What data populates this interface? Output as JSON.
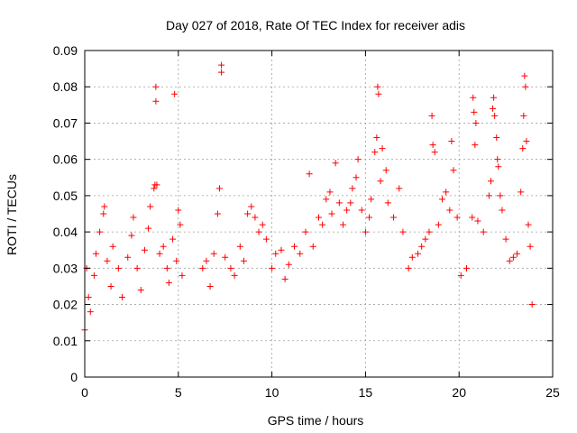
{
  "chart_data": {
    "type": "scatter",
    "title": "Day 027 of 2018, Rate Of TEC Index for receiver adis",
    "xlabel": "GPS time / hours",
    "ylabel": "ROTI / TECUs",
    "xlim": [
      0,
      25
    ],
    "ylim": [
      0,
      0.09
    ],
    "x_ticks": [
      0,
      5,
      10,
      15,
      20,
      25
    ],
    "y_ticks": [
      0,
      0.01,
      0.02,
      0.03,
      0.04,
      0.05,
      0.06,
      0.07,
      0.08,
      0.09
    ],
    "x_tick_labels": [
      "0",
      "5",
      "10",
      "15",
      "20",
      "25"
    ],
    "y_tick_labels": [
      "0",
      "0.01",
      "0.02",
      "0.03",
      "0.04",
      "0.05",
      "0.06",
      "0.07",
      "0.08",
      "0.09"
    ],
    "grid": true,
    "marker": "+",
    "series": [
      {
        "color": "#ff0000",
        "points": [
          [
            0.0,
            0.013
          ],
          [
            0.1,
            0.03
          ],
          [
            0.2,
            0.022
          ],
          [
            0.3,
            0.018
          ],
          [
            0.5,
            0.028
          ],
          [
            0.6,
            0.034
          ],
          [
            0.8,
            0.04
          ],
          [
            1.0,
            0.045
          ],
          [
            1.05,
            0.047
          ],
          [
            1.2,
            0.032
          ],
          [
            1.4,
            0.025
          ],
          [
            1.5,
            0.036
          ],
          [
            1.8,
            0.03
          ],
          [
            2.0,
            0.022
          ],
          [
            2.3,
            0.033
          ],
          [
            2.5,
            0.039
          ],
          [
            2.6,
            0.044
          ],
          [
            2.8,
            0.03
          ],
          [
            3.0,
            0.024
          ],
          [
            3.2,
            0.035
          ],
          [
            3.4,
            0.041
          ],
          [
            3.5,
            0.047
          ],
          [
            3.7,
            0.052
          ],
          [
            3.75,
            0.053
          ],
          [
            3.8,
            0.08
          ],
          [
            3.8,
            0.076
          ],
          [
            3.85,
            0.053
          ],
          [
            4.0,
            0.034
          ],
          [
            4.2,
            0.036
          ],
          [
            4.4,
            0.03
          ],
          [
            4.5,
            0.026
          ],
          [
            4.7,
            0.038
          ],
          [
            4.8,
            0.078
          ],
          [
            4.9,
            0.032
          ],
          [
            5.0,
            0.046
          ],
          [
            5.1,
            0.042
          ],
          [
            5.2,
            0.028
          ],
          [
            6.3,
            0.03
          ],
          [
            6.5,
            0.032
          ],
          [
            6.7,
            0.025
          ],
          [
            6.9,
            0.034
          ],
          [
            7.1,
            0.045
          ],
          [
            7.2,
            0.052
          ],
          [
            7.3,
            0.086
          ],
          [
            7.3,
            0.084
          ],
          [
            7.5,
            0.033
          ],
          [
            7.8,
            0.03
          ],
          [
            8.0,
            0.028
          ],
          [
            8.3,
            0.036
          ],
          [
            8.5,
            0.032
          ],
          [
            8.7,
            0.045
          ],
          [
            8.9,
            0.047
          ],
          [
            9.1,
            0.044
          ],
          [
            9.3,
            0.04
          ],
          [
            9.5,
            0.042
          ],
          [
            9.7,
            0.038
          ],
          [
            10.0,
            0.03
          ],
          [
            10.2,
            0.034
          ],
          [
            10.5,
            0.035
          ],
          [
            10.7,
            0.027
          ],
          [
            10.9,
            0.031
          ],
          [
            11.2,
            0.036
          ],
          [
            11.5,
            0.034
          ],
          [
            11.8,
            0.04
          ],
          [
            12.0,
            0.056
          ],
          [
            12.2,
            0.036
          ],
          [
            12.5,
            0.044
          ],
          [
            12.7,
            0.042
          ],
          [
            12.9,
            0.049
          ],
          [
            13.1,
            0.051
          ],
          [
            13.2,
            0.045
          ],
          [
            13.4,
            0.059
          ],
          [
            13.6,
            0.048
          ],
          [
            13.8,
            0.042
          ],
          [
            14.0,
            0.046
          ],
          [
            14.2,
            0.048
          ],
          [
            14.3,
            0.052
          ],
          [
            14.5,
            0.055
          ],
          [
            14.6,
            0.06
          ],
          [
            14.8,
            0.046
          ],
          [
            15.0,
            0.04
          ],
          [
            15.2,
            0.044
          ],
          [
            15.3,
            0.049
          ],
          [
            15.5,
            0.062
          ],
          [
            15.6,
            0.066
          ],
          [
            15.65,
            0.08
          ],
          [
            15.7,
            0.078
          ],
          [
            15.8,
            0.054
          ],
          [
            15.9,
            0.063
          ],
          [
            16.1,
            0.057
          ],
          [
            16.2,
            0.048
          ],
          [
            16.5,
            0.044
          ],
          [
            16.8,
            0.052
          ],
          [
            17.0,
            0.04
          ],
          [
            17.3,
            0.03
          ],
          [
            17.5,
            0.033
          ],
          [
            17.8,
            0.034
          ],
          [
            18.0,
            0.036
          ],
          [
            18.2,
            0.038
          ],
          [
            18.4,
            0.04
          ],
          [
            18.55,
            0.072
          ],
          [
            18.6,
            0.064
          ],
          [
            18.7,
            0.062
          ],
          [
            18.9,
            0.042
          ],
          [
            19.1,
            0.049
          ],
          [
            19.3,
            0.051
          ],
          [
            19.5,
            0.046
          ],
          [
            19.6,
            0.065
          ],
          [
            19.7,
            0.057
          ],
          [
            19.9,
            0.044
          ],
          [
            20.1,
            0.028
          ],
          [
            20.4,
            0.03
          ],
          [
            20.7,
            0.044
          ],
          [
            20.75,
            0.077
          ],
          [
            20.8,
            0.073
          ],
          [
            20.85,
            0.064
          ],
          [
            20.9,
            0.07
          ],
          [
            21.0,
            0.043
          ],
          [
            21.3,
            0.04
          ],
          [
            21.6,
            0.05
          ],
          [
            21.7,
            0.054
          ],
          [
            21.8,
            0.074
          ],
          [
            21.85,
            0.077
          ],
          [
            21.9,
            0.072
          ],
          [
            22.0,
            0.066
          ],
          [
            22.05,
            0.06
          ],
          [
            22.1,
            0.058
          ],
          [
            22.2,
            0.05
          ],
          [
            22.3,
            0.046
          ],
          [
            22.5,
            0.038
          ],
          [
            22.7,
            0.032
          ],
          [
            22.9,
            0.033
          ],
          [
            23.1,
            0.034
          ],
          [
            23.3,
            0.051
          ],
          [
            23.4,
            0.063
          ],
          [
            23.45,
            0.072
          ],
          [
            23.5,
            0.083
          ],
          [
            23.55,
            0.08
          ],
          [
            23.6,
            0.065
          ],
          [
            23.7,
            0.042
          ],
          [
            23.8,
            0.036
          ],
          [
            23.9,
            0.02
          ]
        ]
      }
    ]
  }
}
